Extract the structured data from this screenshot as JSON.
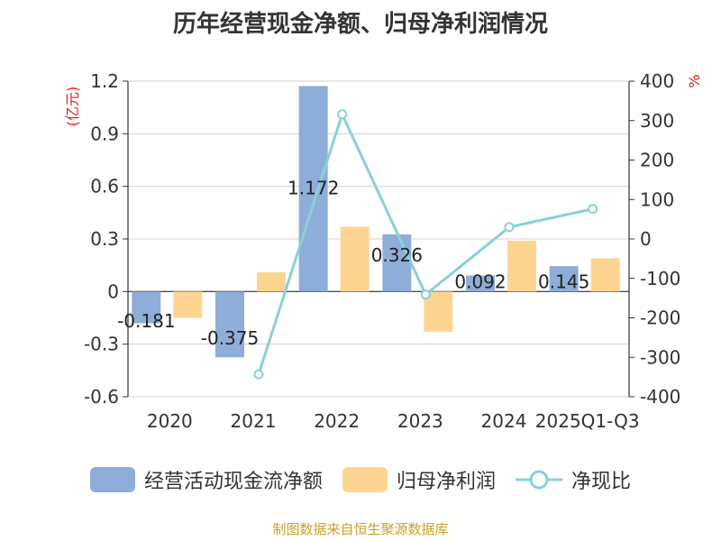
{
  "chart_data": {
    "type": "bar+line",
    "title": "历年经营现金净额、归母净利润情况",
    "categories": [
      "2020",
      "2021",
      "2022",
      "2023",
      "2024",
      "2025Q1-Q3"
    ],
    "series": [
      {
        "name": "经营活动现金流净额",
        "type": "bar",
        "axis": "left",
        "color": "#8eadd8",
        "values": [
          -0.181,
          -0.375,
          1.172,
          0.326,
          0.092,
          0.145
        ],
        "labels": [
          "-0.181",
          "-0.375",
          "1.172",
          "0.326",
          "0.092",
          "0.145"
        ]
      },
      {
        "name": "归母净利润",
        "type": "bar",
        "axis": "left",
        "color": "#fdd591",
        "values": [
          -0.15,
          0.11,
          0.37,
          -0.23,
          0.29,
          0.19
        ]
      },
      {
        "name": "净现比",
        "type": "line",
        "axis": "right",
        "color": "#88d1d6",
        "values": [
          null,
          -343,
          316,
          -141,
          30,
          76
        ]
      }
    ],
    "left_axis": {
      "label": "(亿元)",
      "ylim": [
        -0.6,
        1.2
      ],
      "ticks": [
        "-0.6",
        "-0.3",
        "0",
        "0.3",
        "0.6",
        "0.9",
        "1.2"
      ],
      "tick_values": [
        -0.6,
        -0.3,
        0,
        0.3,
        0.6,
        0.9,
        1.2
      ]
    },
    "right_axis": {
      "label": "%",
      "ylim": [
        -400,
        400
      ],
      "ticks": [
        "-400",
        "-300",
        "-200",
        "-100",
        "0",
        "100",
        "200",
        "300",
        "400"
      ],
      "tick_values": [
        -400,
        -300,
        -200,
        -100,
        0,
        100,
        200,
        300,
        400
      ]
    },
    "grid": true,
    "legend_position": "bottom"
  },
  "footer": {
    "source": "制图数据来自恒生聚源数据库"
  }
}
